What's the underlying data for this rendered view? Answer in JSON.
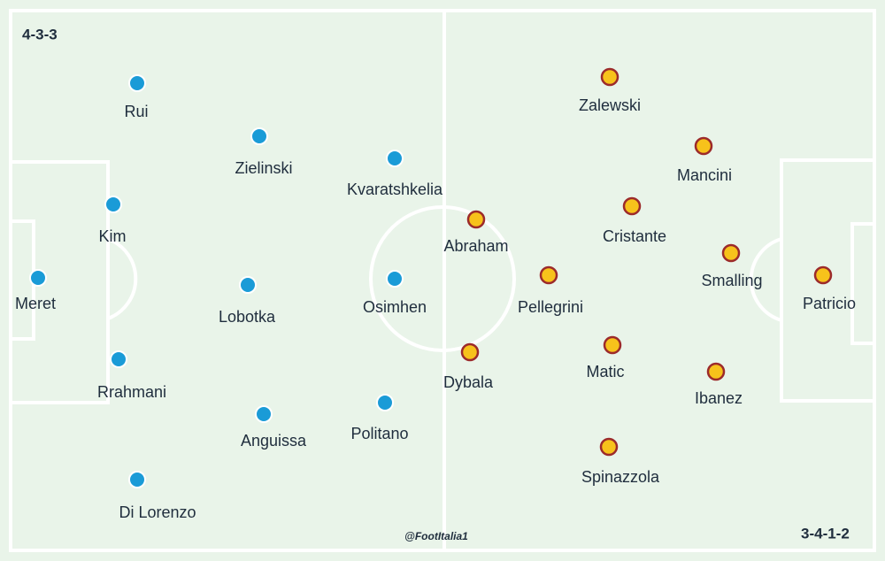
{
  "home": {
    "formation": "4-3-3",
    "players": [
      "Rui",
      "Zielinski",
      "Kvaratshkelia",
      "Kim",
      "Meret",
      "Lobotka",
      "Osimhen",
      "Rrahmani",
      "Anguissa",
      "Politano",
      "Di Lorenzo"
    ]
  },
  "away": {
    "formation": "3-4-1-2",
    "players": [
      "Zalewski",
      "Mancini",
      "Cristante",
      "Abraham",
      "Smalling",
      "Patricio",
      "Pellegrini",
      "Matic",
      "Dybala",
      "Ibanez",
      "Spinazzola"
    ]
  },
  "credit": "@FootItalia1"
}
